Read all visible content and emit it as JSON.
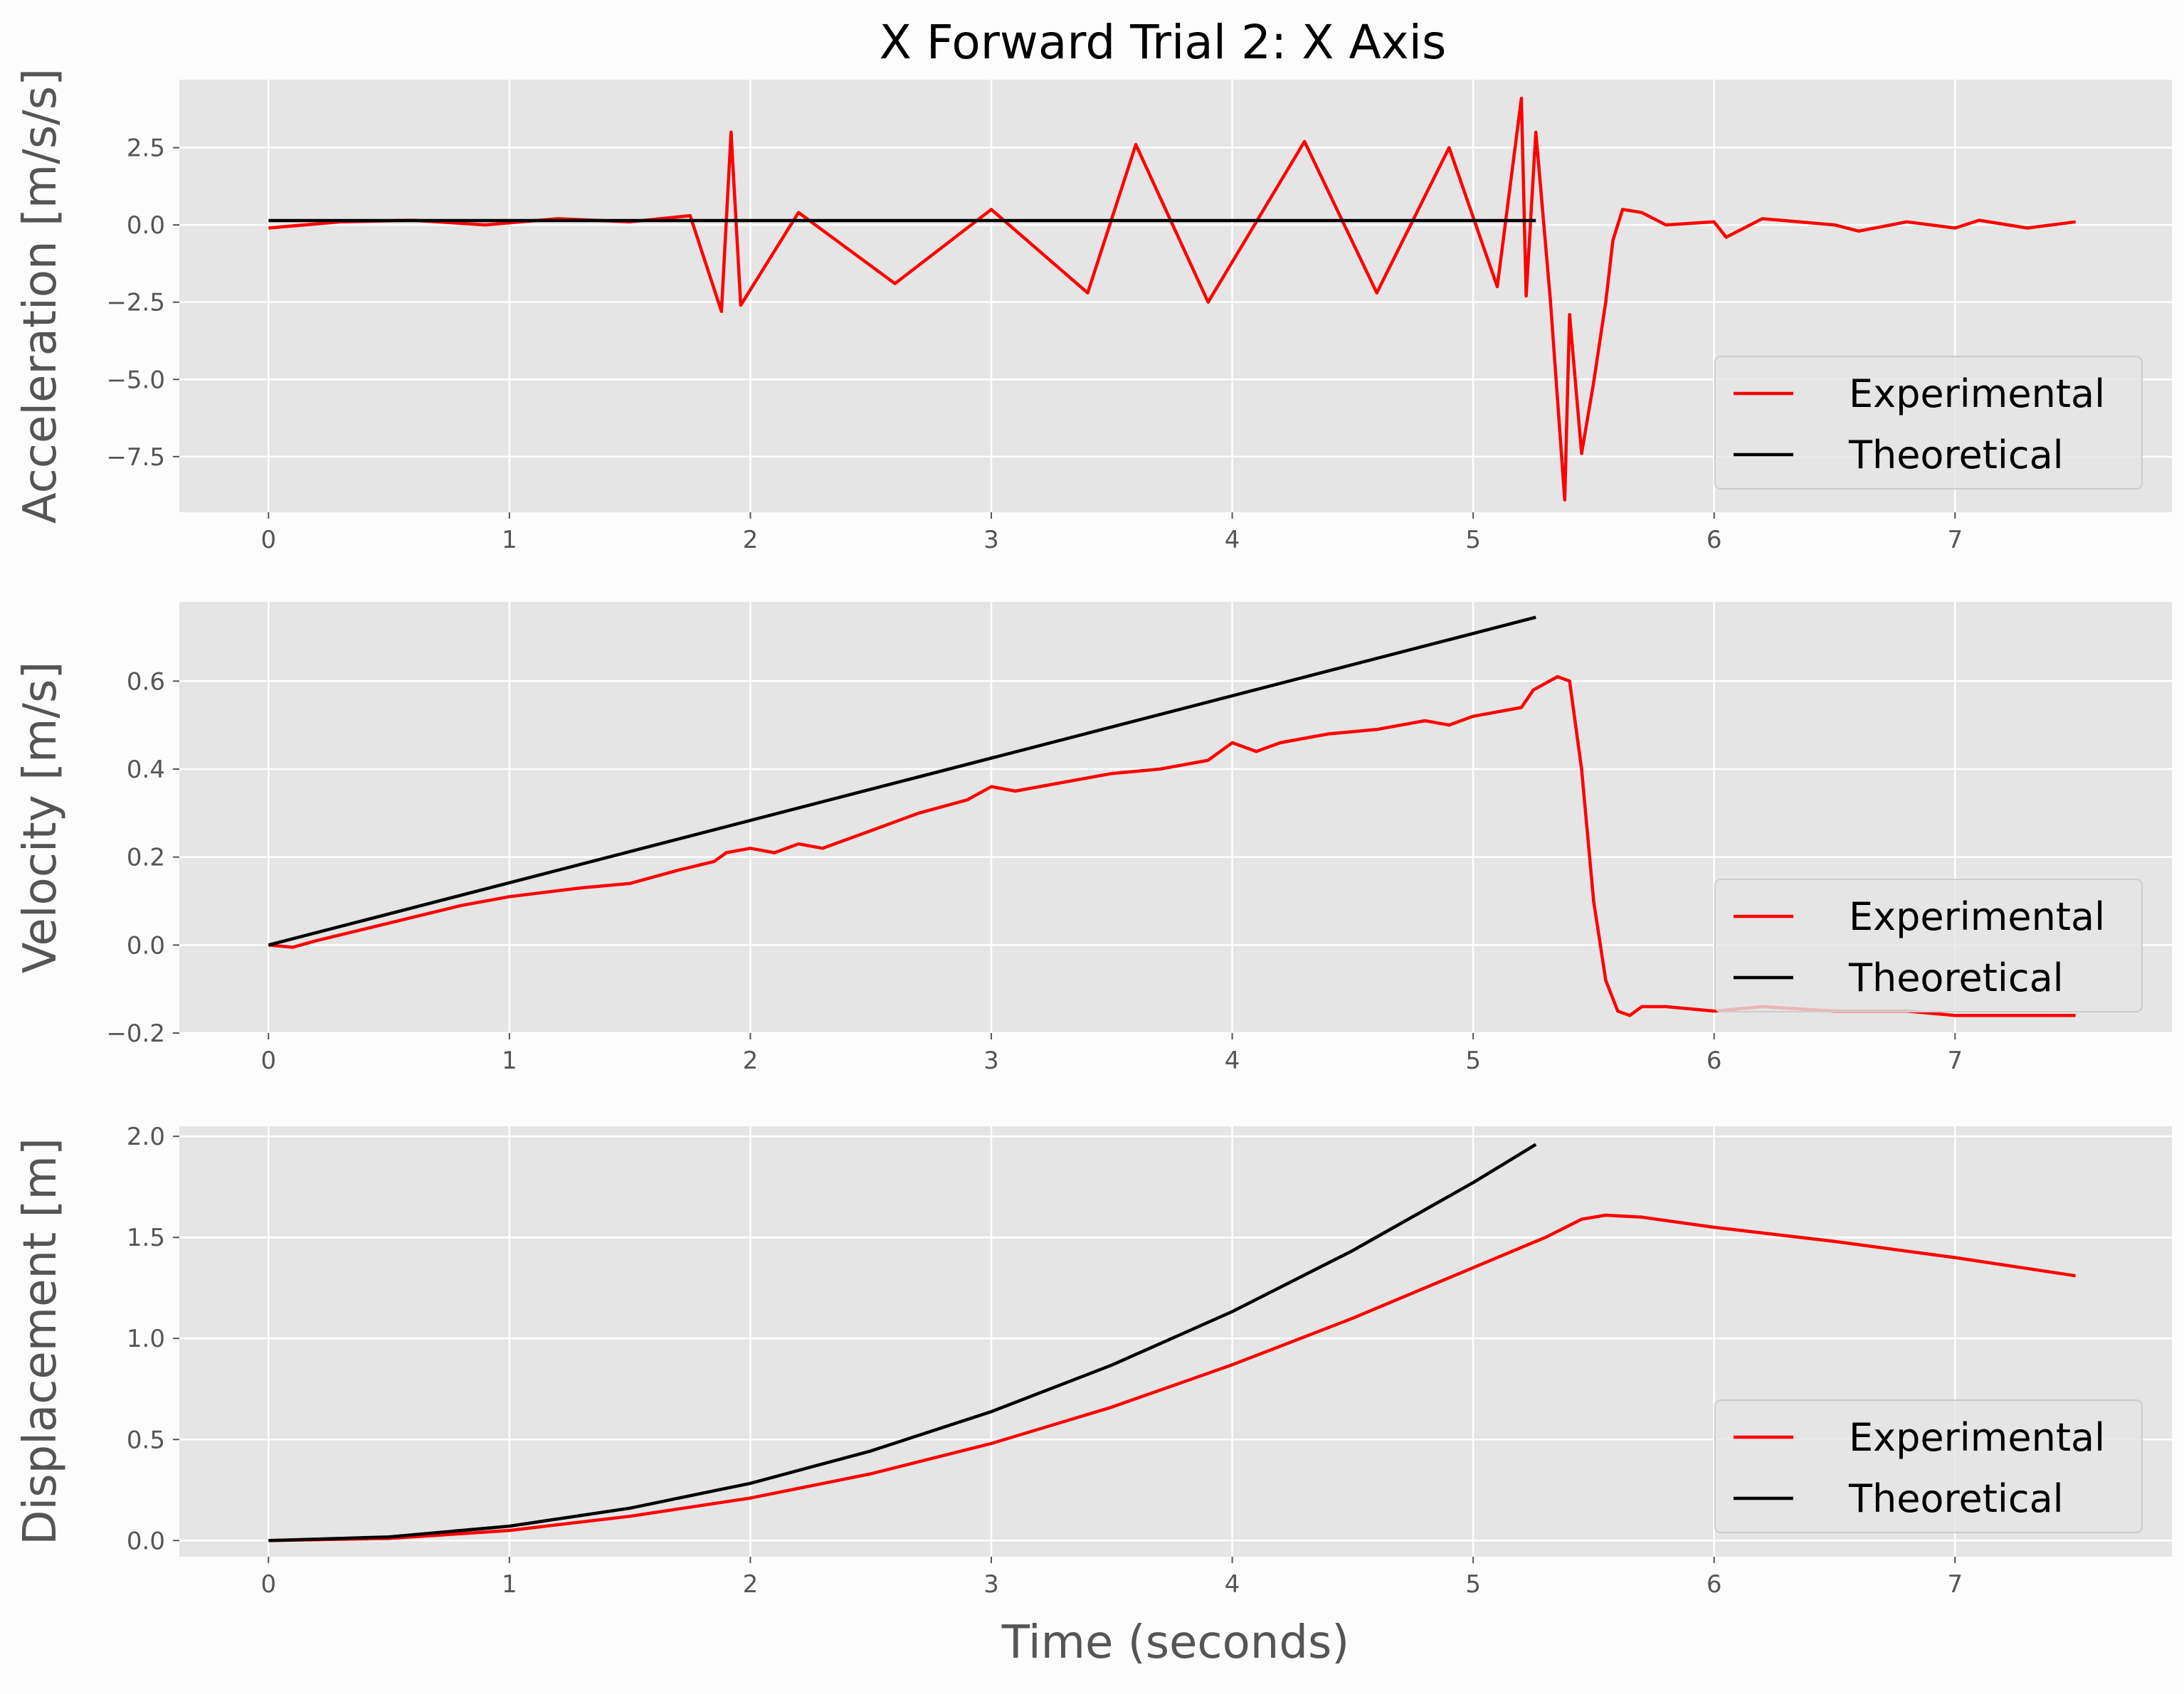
{
  "chart_data": [
    {
      "type": "line",
      "title": "X Forward Trial 2: X Axis",
      "xlabel": "",
      "ylabel": "Acceleration [m/s/s]",
      "xlim": [
        -0.37,
        7.9
      ],
      "ylim": [
        -9.3,
        4.7
      ],
      "xticks": [
        0,
        1,
        2,
        3,
        4,
        5,
        6,
        7
      ],
      "yticks": [
        -7.5,
        -5.0,
        -2.5,
        0.0,
        2.5
      ],
      "ytick_labels": [
        "−7.5",
        "−5.0",
        "−2.5",
        "0.0",
        "2.5"
      ],
      "grid": true,
      "legend_position": "lower right",
      "series": [
        {
          "name": "Experimental",
          "color": "#ff0000",
          "x": [
            0,
            0.3,
            0.6,
            0.9,
            1.2,
            1.5,
            1.75,
            1.88,
            1.92,
            1.96,
            2.2,
            2.6,
            3.0,
            3.4,
            3.6,
            3.9,
            4.3,
            4.6,
            4.9,
            5.1,
            5.2,
            5.22,
            5.26,
            5.32,
            5.38,
            5.4,
            5.45,
            5.5,
            5.55,
            5.58,
            5.62,
            5.7,
            5.8,
            6.0,
            6.05,
            6.2,
            6.5,
            6.6,
            6.8,
            7.0,
            7.1,
            7.3,
            7.5
          ],
          "y": [
            -0.1,
            0.1,
            0.15,
            0.0,
            0.2,
            0.1,
            0.3,
            -2.8,
            3.0,
            -2.6,
            0.4,
            -1.9,
            0.5,
            -2.2,
            2.6,
            -2.5,
            2.7,
            -2.2,
            2.5,
            -2.0,
            4.1,
            -2.3,
            3.0,
            -2.4,
            -8.9,
            -2.9,
            -7.4,
            -5.1,
            -2.5,
            -0.5,
            0.5,
            0.4,
            0.0,
            0.1,
            -0.4,
            0.2,
            0.0,
            -0.2,
            0.1,
            -0.1,
            0.15,
            -0.1,
            0.1
          ]
        },
        {
          "name": "Theoretical",
          "color": "#000000",
          "x": [
            0,
            5.26
          ],
          "y": [
            0.14,
            0.14
          ]
        }
      ]
    },
    {
      "type": "line",
      "title": "",
      "xlabel": "",
      "ylabel": "Velocity [m/s]",
      "xlim": [
        -0.37,
        7.9
      ],
      "ylim": [
        -0.2,
        0.78
      ],
      "xticks": [
        0,
        1,
        2,
        3,
        4,
        5,
        6,
        7
      ],
      "yticks": [
        -0.2,
        0.0,
        0.2,
        0.4,
        0.6
      ],
      "ytick_labels": [
        "−0.2",
        "0.0",
        "0.2",
        "0.4",
        "0.6"
      ],
      "grid": true,
      "legend_position": "lower right",
      "series": [
        {
          "name": "Experimental",
          "color": "#ff0000",
          "x": [
            0,
            0.1,
            0.2,
            0.5,
            0.8,
            1.0,
            1.3,
            1.5,
            1.7,
            1.85,
            1.9,
            2.0,
            2.1,
            2.2,
            2.3,
            2.5,
            2.7,
            2.9,
            3.0,
            3.1,
            3.3,
            3.5,
            3.7,
            3.9,
            4.0,
            4.1,
            4.2,
            4.4,
            4.6,
            4.8,
            4.9,
            5.0,
            5.1,
            5.2,
            5.25,
            5.35,
            5.4,
            5.45,
            5.5,
            5.55,
            5.6,
            5.65,
            5.7,
            5.8,
            6.0,
            6.2,
            6.5,
            6.8,
            7.0,
            7.2,
            7.5
          ],
          "y": [
            0.0,
            -0.005,
            0.01,
            0.05,
            0.09,
            0.11,
            0.13,
            0.14,
            0.17,
            0.19,
            0.21,
            0.22,
            0.21,
            0.23,
            0.22,
            0.26,
            0.3,
            0.33,
            0.36,
            0.35,
            0.37,
            0.39,
            0.4,
            0.42,
            0.46,
            0.44,
            0.46,
            0.48,
            0.49,
            0.51,
            0.5,
            0.52,
            0.53,
            0.54,
            0.58,
            0.61,
            0.6,
            0.4,
            0.1,
            -0.08,
            -0.15,
            -0.16,
            -0.14,
            -0.14,
            -0.15,
            -0.14,
            -0.15,
            -0.15,
            -0.16,
            -0.16,
            -0.16
          ]
        },
        {
          "name": "Theoretical",
          "color": "#000000",
          "x": [
            0,
            5.26
          ],
          "y": [
            0.0,
            0.745
          ]
        }
      ]
    },
    {
      "type": "line",
      "title": "",
      "xlabel": "Time (seconds)",
      "ylabel": "Displacement [m]",
      "xlim": [
        -0.37,
        7.9
      ],
      "ylim": [
        -0.08,
        2.05
      ],
      "xticks": [
        0,
        1,
        2,
        3,
        4,
        5,
        6,
        7
      ],
      "yticks": [
        0.0,
        0.5,
        1.0,
        1.5,
        2.0
      ],
      "ytick_labels": [
        "0.0",
        "0.5",
        "1.0",
        "1.5",
        "2.0"
      ],
      "grid": true,
      "legend_position": "lower right",
      "series": [
        {
          "name": "Experimental",
          "color": "#ff0000",
          "x": [
            0,
            0.5,
            1.0,
            1.5,
            2.0,
            2.5,
            3.0,
            3.5,
            4.0,
            4.5,
            5.0,
            5.3,
            5.45,
            5.55,
            5.7,
            6.0,
            6.5,
            7.0,
            7.5
          ],
          "y": [
            0.0,
            0.01,
            0.05,
            0.12,
            0.21,
            0.33,
            0.48,
            0.66,
            0.87,
            1.1,
            1.35,
            1.5,
            1.59,
            1.61,
            1.6,
            1.55,
            1.48,
            1.4,
            1.31
          ]
        },
        {
          "name": "Theoretical",
          "color": "#000000",
          "x": [
            0,
            0.5,
            1.0,
            1.5,
            2.0,
            2.5,
            3.0,
            3.5,
            4.0,
            4.5,
            5.0,
            5.26
          ],
          "y": [
            0.0,
            0.018,
            0.071,
            0.16,
            0.283,
            0.443,
            0.638,
            0.868,
            1.133,
            1.435,
            1.771,
            1.96
          ]
        }
      ]
    }
  ]
}
